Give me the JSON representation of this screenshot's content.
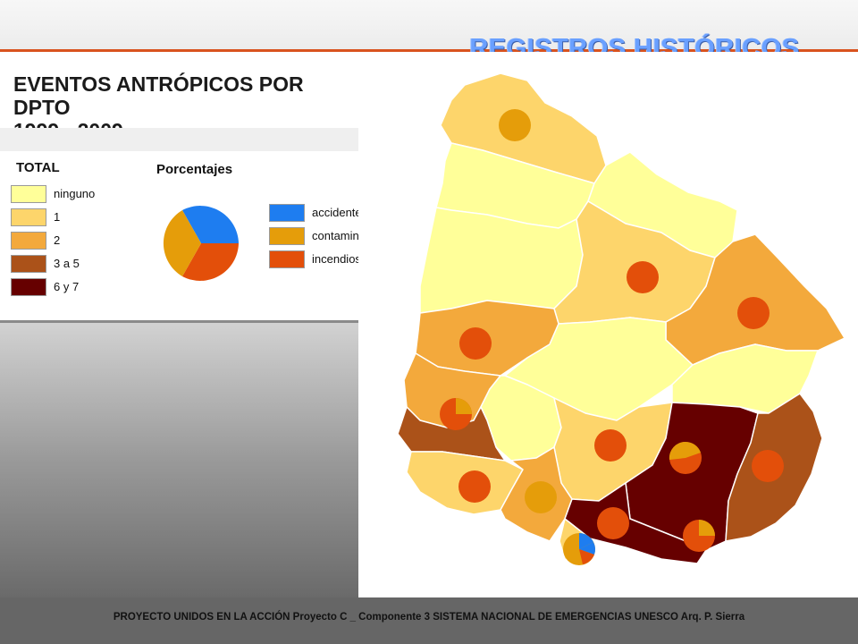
{
  "slide": {
    "title": "REGISTROS HISTÓRICOS",
    "footer": "PROYECTO UNIDOS EN LA ACCIÓN Proyecto C _ Componente  3 SISTEMA NACIONAL DE EMERGENCIAS UNESCO Arq. P. Sierra"
  },
  "map": {
    "title_line1": "EVENTOS ANTRÓPICOS POR DPTO",
    "title_line2": "1999 - 2009",
    "legend_total": {
      "heading": "TOTAL",
      "classes": [
        {
          "label": "ninguno",
          "color": "#ffff99"
        },
        {
          "label": "1",
          "color": "#fdd56b"
        },
        {
          "label": "2",
          "color": "#f3a93c"
        },
        {
          "label": "3 a 5",
          "color": "#ab5219"
        },
        {
          "label": "6 y 7",
          "color": "#660000"
        }
      ]
    },
    "legend_percent": {
      "heading": "Porcentajes",
      "causes": [
        {
          "label": "accidentes",
          "color": "#1e7df0"
        },
        {
          "label": "contaminación",
          "color": "#e59d0a"
        },
        {
          "label": "incendios",
          "color": "#e34f0a"
        }
      ]
    }
  }
}
